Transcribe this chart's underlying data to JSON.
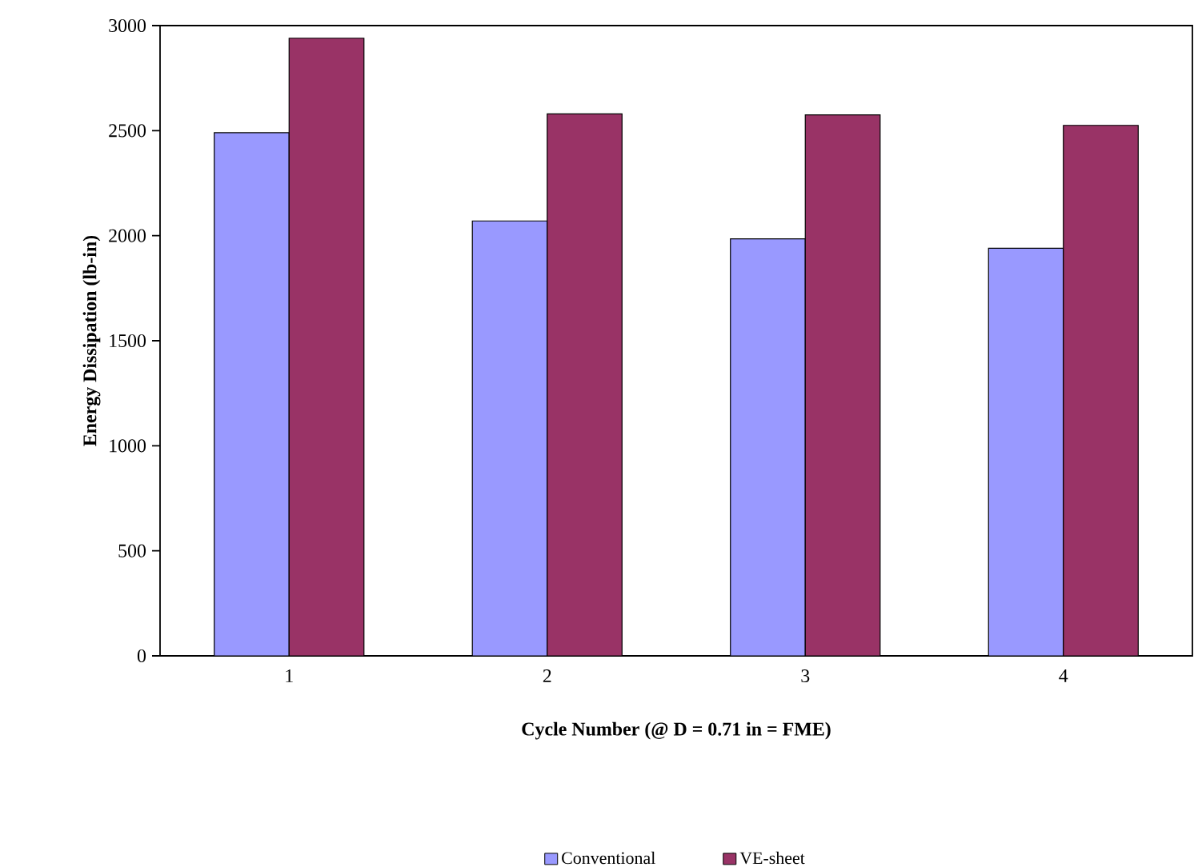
{
  "chart_data": {
    "type": "bar",
    "xlabel": "Cycle Number (@ D = 0.71 in = FME)",
    "ylabel": "Energy Dissipation (lb-in)",
    "categories": [
      "1",
      "2",
      "3",
      "4"
    ],
    "series": [
      {
        "name": "Conventional",
        "color": "#9999ff",
        "values": [
          2490,
          2070,
          1985,
          1940
        ]
      },
      {
        "name": "VE-sheet",
        "color": "#993366",
        "values": [
          2940,
          2580,
          2575,
          2525
        ]
      }
    ],
    "ylim": [
      0,
      3000
    ],
    "yticks": [
      0,
      500,
      1000,
      1500,
      2000,
      2500,
      3000
    ],
    "grid": false,
    "legend": "bottom"
  }
}
